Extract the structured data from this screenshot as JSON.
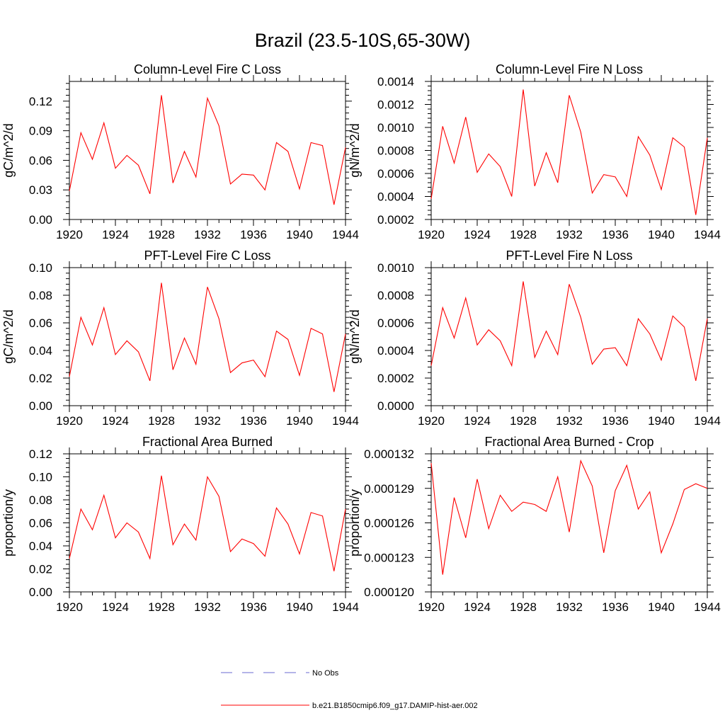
{
  "title": "Brazil (23.5-10S,65-30W)",
  "legend": {
    "items": [
      {
        "label": "No Obs",
        "color": "#6a6ad0",
        "dash": "dashed"
      },
      {
        "label": "b.e21.B1850cmip6.f09_g17.DAMIP-hist-aer.002",
        "color": "#ff0000",
        "dash": "solid"
      }
    ]
  },
  "chart_data": [
    {
      "type": "line",
      "title": "Column-Level Fire C Loss",
      "ylabel": "gC/m^2/d",
      "xlim": [
        1920,
        1944
      ],
      "ylim": [
        0,
        0.14
      ],
      "xticks": [
        1920,
        1924,
        1928,
        1932,
        1936,
        1940,
        1944
      ],
      "xtick_labels": [
        "1920",
        "1924",
        "1928",
        "1932",
        "1936",
        "1940",
        "1944"
      ],
      "yticks": [
        0,
        0.03,
        0.06,
        0.09,
        0.12
      ],
      "ytick_labels": [
        "0.00",
        "0.03",
        "0.06",
        "0.09",
        "0.12"
      ],
      "series": [
        {
          "color": "#ff0000",
          "x": [
            1920,
            1921,
            1922,
            1923,
            1924,
            1925,
            1926,
            1927,
            1928,
            1929,
            1930,
            1931,
            1932,
            1933,
            1934,
            1935,
            1936,
            1937,
            1938,
            1939,
            1940,
            1941,
            1942,
            1943,
            1944
          ],
          "values": [
            0.029,
            0.088,
            0.061,
            0.098,
            0.052,
            0.065,
            0.055,
            0.026,
            0.126,
            0.037,
            0.069,
            0.043,
            0.123,
            0.095,
            0.036,
            0.046,
            0.045,
            0.03,
            0.078,
            0.069,
            0.031,
            0.078,
            0.075,
            0.015,
            0.073
          ]
        }
      ]
    },
    {
      "type": "line",
      "title": "Column-Level Fire N Loss",
      "ylabel": "gN/m^2/d",
      "xlim": [
        1920,
        1944
      ],
      "ylim": [
        0.0002,
        0.0014
      ],
      "xticks": [
        1920,
        1924,
        1928,
        1932,
        1936,
        1940,
        1944
      ],
      "xtick_labels": [
        "1920",
        "1924",
        "1928",
        "1932",
        "1936",
        "1940",
        "1944"
      ],
      "yticks": [
        0.0002,
        0.0004,
        0.0006,
        0.0008,
        0.001,
        0.0012,
        0.0014
      ],
      "ytick_labels": [
        "0.0002",
        "0.0004",
        "0.0006",
        "0.0008",
        "0.0010",
        "0.0012",
        "0.0014"
      ],
      "series": [
        {
          "color": "#ff0000",
          "x": [
            1920,
            1921,
            1922,
            1923,
            1924,
            1925,
            1926,
            1927,
            1928,
            1929,
            1930,
            1931,
            1932,
            1933,
            1934,
            1935,
            1936,
            1937,
            1938,
            1939,
            1940,
            1941,
            1942,
            1943,
            1944
          ],
          "values": [
            0.00038,
            0.00101,
            0.00069,
            0.00109,
            0.00061,
            0.00077,
            0.00066,
            0.0004,
            0.00133,
            0.00049,
            0.00078,
            0.00052,
            0.00128,
            0.00096,
            0.00043,
            0.00059,
            0.00057,
            0.0004,
            0.00092,
            0.00076,
            0.00046,
            0.00091,
            0.00083,
            0.00024,
            0.00091
          ]
        }
      ]
    },
    {
      "type": "line",
      "title": "PFT-Level Fire C Loss",
      "ylabel": "gC/m^2/d",
      "xlim": [
        1920,
        1944
      ],
      "ylim": [
        0,
        0.1
      ],
      "xticks": [
        1920,
        1924,
        1928,
        1932,
        1936,
        1940,
        1944
      ],
      "xtick_labels": [
        "1920",
        "1924",
        "1928",
        "1932",
        "1936",
        "1940",
        "1944"
      ],
      "yticks": [
        0,
        0.02,
        0.04,
        0.06,
        0.08,
        0.1
      ],
      "ytick_labels": [
        "0.00",
        "0.02",
        "0.04",
        "0.06",
        "0.08",
        "0.10"
      ],
      "series": [
        {
          "color": "#ff0000",
          "x": [
            1920,
            1921,
            1922,
            1923,
            1924,
            1925,
            1926,
            1927,
            1928,
            1929,
            1930,
            1931,
            1932,
            1933,
            1934,
            1935,
            1936,
            1937,
            1938,
            1939,
            1940,
            1941,
            1942,
            1943,
            1944
          ],
          "values": [
            0.021,
            0.064,
            0.044,
            0.071,
            0.037,
            0.047,
            0.039,
            0.018,
            0.089,
            0.026,
            0.049,
            0.03,
            0.086,
            0.063,
            0.024,
            0.031,
            0.033,
            0.021,
            0.054,
            0.048,
            0.022,
            0.056,
            0.052,
            0.01,
            0.052
          ]
        }
      ]
    },
    {
      "type": "line",
      "title": "PFT-Level Fire N Loss",
      "ylabel": "gN/m^2/d",
      "xlim": [
        1920,
        1944
      ],
      "ylim": [
        0,
        0.001
      ],
      "xticks": [
        1920,
        1924,
        1928,
        1932,
        1936,
        1940,
        1944
      ],
      "xtick_labels": [
        "1920",
        "1924",
        "1928",
        "1932",
        "1936",
        "1940",
        "1944"
      ],
      "yticks": [
        0,
        0.0002,
        0.0004,
        0.0006,
        0.0008,
        0.001
      ],
      "ytick_labels": [
        "0.0000",
        "0.0002",
        "0.0004",
        "0.0006",
        "0.0008",
        "0.0010"
      ],
      "series": [
        {
          "color": "#ff0000",
          "x": [
            1920,
            1921,
            1922,
            1923,
            1924,
            1925,
            1926,
            1927,
            1928,
            1929,
            1930,
            1931,
            1932,
            1933,
            1934,
            1935,
            1936,
            1937,
            1938,
            1939,
            1940,
            1941,
            1942,
            1943,
            1944
          ],
          "values": [
            0.00029,
            0.00071,
            0.00049,
            0.00078,
            0.00044,
            0.00055,
            0.00047,
            0.00029,
            0.0009,
            0.00035,
            0.00054,
            0.00037,
            0.00088,
            0.00064,
            0.0003,
            0.00041,
            0.00042,
            0.00029,
            0.00063,
            0.00052,
            0.00033,
            0.00065,
            0.00057,
            0.00018,
            0.00063
          ]
        }
      ]
    },
    {
      "type": "line",
      "title": "Fractional Area Burned",
      "ylabel": "proportion/y",
      "xlim": [
        1920,
        1944
      ],
      "ylim": [
        0,
        0.12
      ],
      "xticks": [
        1920,
        1924,
        1928,
        1932,
        1936,
        1940,
        1944
      ],
      "xtick_labels": [
        "1920",
        "1924",
        "1928",
        "1932",
        "1936",
        "1940",
        "1944"
      ],
      "yticks": [
        0,
        0.02,
        0.04,
        0.06,
        0.08,
        0.1,
        0.12
      ],
      "ytick_labels": [
        "0.00",
        "0.02",
        "0.04",
        "0.06",
        "0.08",
        "0.10",
        "0.12"
      ],
      "series": [
        {
          "color": "#ff0000",
          "x": [
            1920,
            1921,
            1922,
            1923,
            1924,
            1925,
            1926,
            1927,
            1928,
            1929,
            1930,
            1931,
            1932,
            1933,
            1934,
            1935,
            1936,
            1937,
            1938,
            1939,
            1940,
            1941,
            1942,
            1943,
            1944
          ],
          "values": [
            0.029,
            0.072,
            0.054,
            0.084,
            0.047,
            0.06,
            0.052,
            0.029,
            0.101,
            0.041,
            0.059,
            0.045,
            0.1,
            0.083,
            0.035,
            0.046,
            0.042,
            0.031,
            0.073,
            0.059,
            0.033,
            0.069,
            0.066,
            0.018,
            0.072
          ]
        }
      ]
    },
    {
      "type": "line",
      "title": "Fractional Area Burned - Crop",
      "ylabel": "proportion/y",
      "xlim": [
        1920,
        1944
      ],
      "ylim": [
        0.00012,
        0.000132
      ],
      "xticks": [
        1920,
        1924,
        1928,
        1932,
        1936,
        1940,
        1944
      ],
      "xtick_labels": [
        "1920",
        "1924",
        "1928",
        "1932",
        "1936",
        "1940",
        "1944"
      ],
      "yticks": [
        0.00012,
        0.000123,
        0.000126,
        0.000129,
        0.000132
      ],
      "ytick_labels": [
        "0.000120",
        "0.000123",
        "0.000126",
        "0.000129",
        "0.000132"
      ],
      "series": [
        {
          "color": "#ff0000",
          "x": [
            1920,
            1921,
            1922,
            1923,
            1924,
            1925,
            1926,
            1927,
            1928,
            1929,
            1930,
            1931,
            1932,
            1933,
            1934,
            1935,
            1936,
            1937,
            1938,
            1939,
            1940,
            1941,
            1942,
            1943,
            1944
          ],
          "values": [
            0.0001312,
            0.0001215,
            0.0001282,
            0.0001247,
            0.0001298,
            0.0001255,
            0.0001284,
            0.000127,
            0.0001278,
            0.0001276,
            0.000127,
            0.00013,
            0.0001252,
            0.0001314,
            0.0001292,
            0.0001234,
            0.0001288,
            0.000131,
            0.0001272,
            0.0001287,
            0.0001234,
            0.0001259,
            0.0001289,
            0.0001294,
            0.000129
          ]
        }
      ]
    }
  ]
}
